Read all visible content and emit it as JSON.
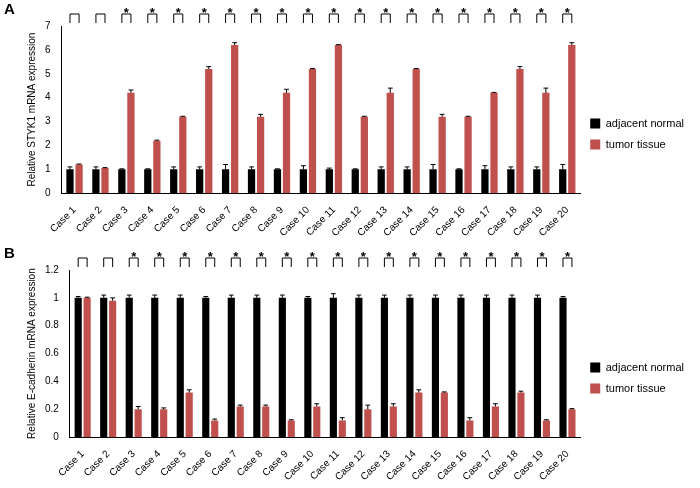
{
  "chart_data": [
    {
      "type": "bar",
      "title": "A",
      "y_label": "Relative STYK1 mRNA expression",
      "categories": [
        "Case 1",
        "Case 2",
        "Case 3",
        "Case 4",
        "Case 5",
        "Case 6",
        "Case 7",
        "Case 8",
        "Case 9",
        "Case 10",
        "Case 11",
        "Case 12",
        "Case 13",
        "Case 14",
        "Case 15",
        "Case 16",
        "Case 17",
        "Case 18",
        "Case 19",
        "Case 20"
      ],
      "series": [
        {
          "name": "adjacent normal",
          "color": "#000000",
          "values": [
            1,
            1,
            1,
            1,
            1,
            1,
            1,
            1,
            1,
            1,
            1,
            1,
            1,
            1,
            1,
            1,
            1,
            1,
            1,
            1
          ],
          "errors": [
            0.1,
            0.1,
            0.02,
            0.02,
            0.1,
            0.1,
            0.2,
            0.1,
            0.02,
            0.15,
            0.05,
            0.02,
            0.1,
            0.1,
            0.2,
            0.02,
            0.15,
            0.1,
            0.1,
            0.2
          ]
        },
        {
          "name": "tumor tissue",
          "color": "#c0504d",
          "values": [
            1.2,
            1.05,
            4.2,
            2.2,
            3.2,
            5.2,
            6.2,
            3.2,
            4.2,
            5.2,
            6.2,
            3.2,
            4.2,
            5.2,
            3.2,
            3.2,
            4.2,
            5.2,
            4.2,
            6.2
          ],
          "errors": [
            0.02,
            0.02,
            0.12,
            0.02,
            0.02,
            0.1,
            0.1,
            0.1,
            0.15,
            0.02,
            0.02,
            0.02,
            0.2,
            0.02,
            0.1,
            0.02,
            0.02,
            0.1,
            0.2,
            0.1
          ]
        }
      ],
      "annotations": [
        {
          "text": "*",
          "categories": [
            "Case 3",
            "Case 4",
            "Case 5",
            "Case 6",
            "Case 7",
            "Case 8",
            "Case 9",
            "Case 10",
            "Case 11",
            "Case 12",
            "Case 13",
            "Case 14",
            "Case 15",
            "Case 16",
            "Case 17",
            "Case 18",
            "Case 19",
            "Case 20"
          ]
        }
      ],
      "ylim": [
        0,
        7
      ],
      "yticks": [
        0,
        1,
        2,
        3,
        4,
        5,
        6,
        7
      ],
      "grid": false,
      "legend": "right"
    },
    {
      "type": "bar",
      "title": "B",
      "y_label": "Relative E-cadherin mRNA expression",
      "categories": [
        "Case 1",
        "Case 2",
        "Case 3",
        "Case 4",
        "Case 5",
        "Case 6",
        "Case 7",
        "Case 8",
        "Case 9",
        "Case 10",
        "Case 11",
        "Case 12",
        "Case 13",
        "Case 14",
        "Case 15",
        "Case 16",
        "Case 17",
        "Case 18",
        "Case 19",
        "Case 20"
      ],
      "series": [
        {
          "name": "adjacent normal",
          "color": "#000000",
          "values": [
            1,
            1,
            1,
            1,
            1,
            1,
            1,
            1,
            1,
            1,
            1,
            1,
            1,
            1,
            1,
            1,
            1,
            1,
            1,
            1
          ],
          "errors": [
            0.01,
            0.02,
            0.02,
            0.02,
            0.02,
            0.01,
            0.02,
            0.02,
            0.02,
            0.01,
            0.03,
            0.02,
            0.02,
            0.02,
            0.02,
            0.02,
            0.02,
            0.02,
            0.02,
            0.01
          ]
        },
        {
          "name": "tumor tissue",
          "color": "#c0504d",
          "values": [
            1.0,
            0.98,
            0.2,
            0.2,
            0.32,
            0.12,
            0.22,
            0.22,
            0.12,
            0.22,
            0.12,
            0.2,
            0.22,
            0.32,
            0.32,
            0.12,
            0.22,
            0.32,
            0.12,
            0.2
          ],
          "errors": [
            0.005,
            0.02,
            0.02,
            0.01,
            0.02,
            0.01,
            0.01,
            0.01,
            0.005,
            0.02,
            0.02,
            0.03,
            0.02,
            0.02,
            0.005,
            0.02,
            0.02,
            0.01,
            0.005,
            0.005
          ]
        }
      ],
      "annotations": [
        {
          "text": "*",
          "categories": [
            "Case 3",
            "Case 4",
            "Case 5",
            "Case 6",
            "Case 7",
            "Case 8",
            "Case 9",
            "Case 10",
            "Case 11",
            "Case 12",
            "Case 13",
            "Case 14",
            "Case 15",
            "Case 16",
            "Case 17",
            "Case 18",
            "Case 19",
            "Case 20"
          ]
        }
      ],
      "ylim": [
        0,
        1.2
      ],
      "yticks": [
        0,
        0.2,
        0.4,
        0.6,
        0.8,
        1,
        1.2
      ],
      "grid": false,
      "legend": "right"
    }
  ]
}
